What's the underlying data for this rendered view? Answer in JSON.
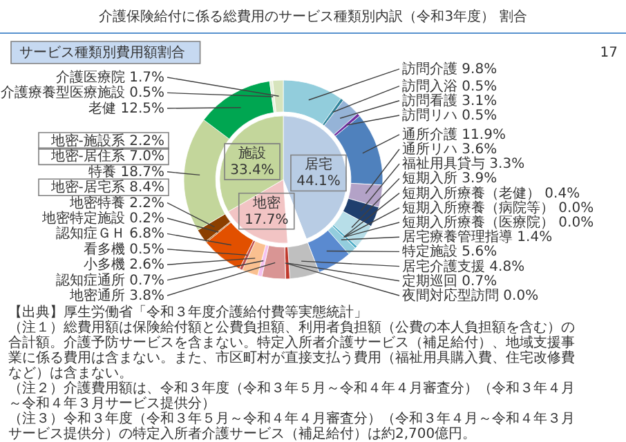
{
  "chart_data": [
    {
      "type": "donut",
      "title": "介護保険給付に係る総費用のサービス種類別内訳（令和3年度） 割合",
      "subtitle": "サービス種類別費用額割合",
      "categories": [
        "訪問介護",
        "訪問入浴",
        "訪問看護",
        "訪問リハ",
        "通所介護",
        "通所リハ",
        "福祉用具貸与",
        "短期入所",
        "短期入所療養（老健）",
        "短期入所療養（病院等）",
        "短期入所療養（医療院）",
        "居宅療養管理指導",
        "特定施設",
        "居宅介護支援",
        "定期巡回",
        "夜間対応型訪問",
        "地密通所",
        "認知症通所",
        "小多機",
        "看多機",
        "認知症ＧＨ",
        "地密特定施設",
        "地密特養",
        "特養",
        "老健",
        "介護療養型医療施設",
        "介護医療院"
      ],
      "values": [
        9.8,
        0.5,
        3.1,
        0.5,
        11.9,
        3.6,
        3.3,
        3.9,
        0.4,
        0.0,
        0.0,
        1.4,
        5.6,
        4.8,
        0.7,
        0.0,
        3.8,
        0.7,
        2.6,
        0.5,
        6.8,
        0.2,
        2.2,
        18.7,
        12.5,
        0.5,
        1.7
      ],
      "value_labels": [
        "9.8%",
        "0.5%",
        "3.1%",
        "0.5%",
        "11.9%",
        "3.6%",
        "3.3%",
        "3.9%",
        "0.4%",
        "0.0%",
        "0.0%",
        "1.4%",
        "5.6%",
        "4.8%",
        "0.7%",
        "0.0%",
        "3.8%",
        "0.7%",
        "2.6%",
        "0.5%",
        "6.8%",
        "0.2%",
        "2.2%",
        "18.7%",
        "12.5%",
        "0.5%",
        "1.7%"
      ],
      "colors": [
        "#92cddc",
        "#31859c",
        "#95b3d7",
        "#7030a0",
        "#4f81bd",
        "#b3a2c7",
        "#1f3f6e",
        "#b7dee8",
        "#4bacc6",
        "#31859c",
        "#215968",
        "#93cddd",
        "#5a8ad0",
        "#bfbfbf",
        "#c0392b",
        "#e87070",
        "#d99594",
        "#f4c2f0",
        "#fac090",
        "#c0504d",
        "#e25000",
        "#a65000",
        "#8b3f00",
        "#c3d69b",
        "#00a651",
        "#ebf1de",
        "#d7e4bd"
      ],
      "annotations": [
        "地密-施設系 2.2%",
        "地密-居住系 7.0%",
        "地密-居宅系 8.4%",
        "【出典】厚生労働省「令和３年度介護給付費等実態統計」",
        "（注１）総費用額は保険給付額と公費負担額、利用者負担額（公費の本人負担額を含む）の合計額。介護予防サービスを含まない。特定入所者介護サービス（補足給付）、地域支援事業に係る費用は含まない。また、市区町村が直接支払う費用（福祉用具購入費、住宅改修費など）は含まない。",
        "（注２）介護費用額は、令和３年度（令和３年５月～令和４年４月審査分）（令和３年４月～令和４年３月サービス提供分）",
        "（注３）令和３年度（令和３年５月～令和４年４月審査分）（令和３年４月～令和４年３月サービス提供分）の特定入所者介護サービス（補足給付）は約2,700億円。",
        "17"
      ]
    },
    {
      "type": "pie",
      "categories": [
        "居宅",
        null,
        "地密",
        "施設"
      ],
      "values": [
        44.1,
        4.8,
        17.7,
        33.4
      ],
      "value_labels": [
        "44.1%",
        null,
        "17.7%",
        "33.4%"
      ],
      "colors": [
        "#b8cce4",
        "#ffffff",
        "#f2c4c4",
        "#c3d69b"
      ]
    }
  ]
}
